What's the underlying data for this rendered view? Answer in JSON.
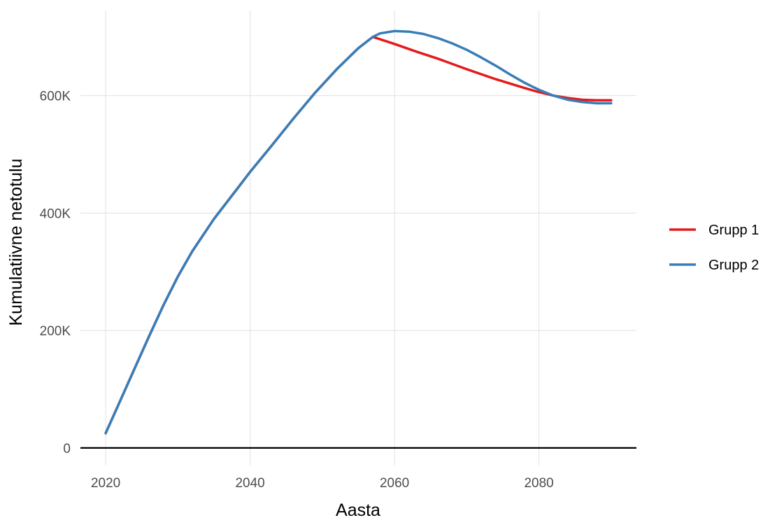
{
  "chart_data": {
    "type": "line",
    "title": "",
    "xlabel": "Aasta",
    "ylabel": "Kumulatiivne netotulu",
    "xlim": [
      2016.5,
      2093.5
    ],
    "ylim": [
      -30000,
      745000
    ],
    "x_ticks": [
      2020,
      2040,
      2060,
      2080
    ],
    "y_ticks": [
      0,
      200000,
      400000,
      600000
    ],
    "y_tick_labels": [
      "0",
      "200K",
      "400K",
      "600K"
    ],
    "grid": true,
    "zero_line": true,
    "legend_position": "right",
    "series": [
      {
        "name": "Grupp 1",
        "color": "#e41a1c",
        "x": [
          2020,
          2022,
          2024,
          2026,
          2028,
          2030,
          2032,
          2035,
          2038,
          2040,
          2043,
          2046,
          2049,
          2052,
          2055,
          2057,
          2060,
          2063,
          2066,
          2070,
          2074,
          2078,
          2080,
          2082,
          2084,
          2086,
          2088,
          2090
        ],
        "y": [
          25000,
          80000,
          135000,
          190000,
          243000,
          292000,
          335000,
          390000,
          438000,
          470000,
          515000,
          561000,
          605000,
          645000,
          681000,
          700000,
          688000,
          675000,
          663000,
          645000,
          628000,
          613000,
          606000,
          600000,
          596000,
          593000,
          592000,
          592000
        ]
      },
      {
        "name": "Grupp 2",
        "color": "#377eb8",
        "x": [
          2020,
          2022,
          2024,
          2026,
          2028,
          2030,
          2032,
          2035,
          2038,
          2040,
          2043,
          2046,
          2049,
          2052,
          2055,
          2057,
          2058,
          2060,
          2062,
          2064,
          2066,
          2068,
          2070,
          2072,
          2074,
          2076,
          2078,
          2080,
          2082,
          2084,
          2086,
          2088,
          2090
        ],
        "y": [
          25000,
          80000,
          135000,
          190000,
          243000,
          292000,
          335000,
          390000,
          438000,
          470000,
          515000,
          561000,
          605000,
          645000,
          681000,
          700000,
          706000,
          710000,
          709000,
          705000,
          698000,
          689000,
          678000,
          665000,
          651000,
          636000,
          622000,
          610000,
          600000,
          593000,
          589000,
          587000,
          587000
        ]
      }
    ]
  }
}
